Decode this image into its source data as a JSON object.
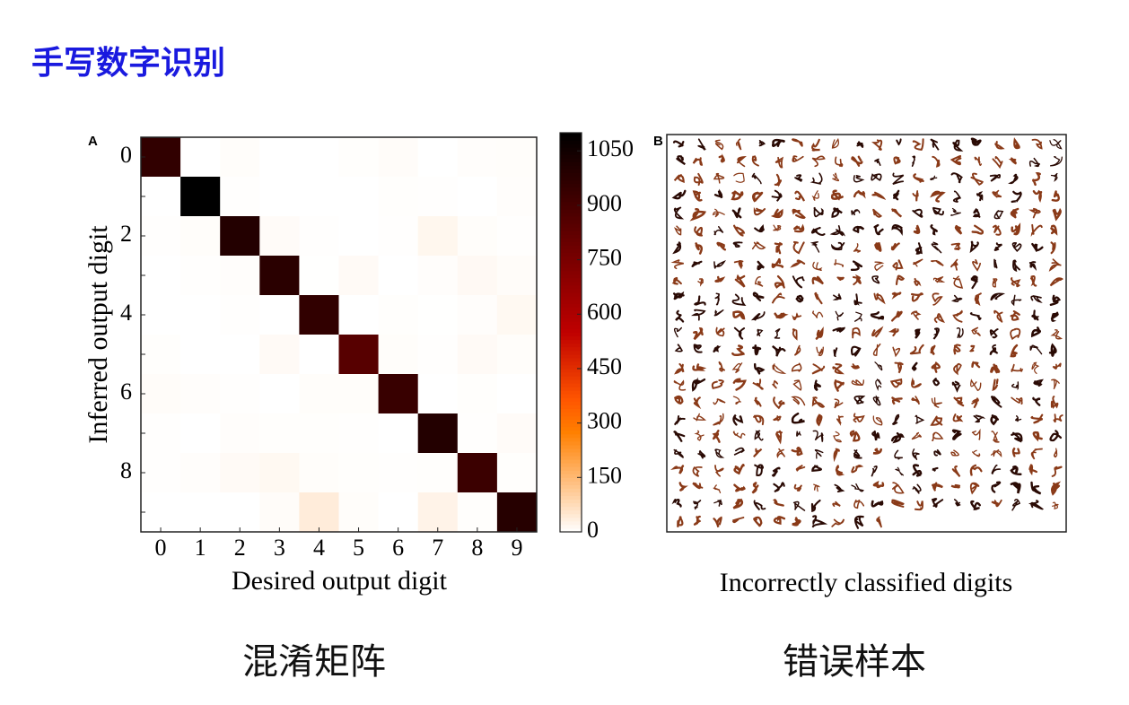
{
  "slide": {
    "title": "手写数字识别",
    "captions": [
      "混淆矩阵",
      "错误样本"
    ]
  },
  "chart_data": {
    "type": "heatmap",
    "panel_label": "A",
    "xlabel": "Desired output digit",
    "ylabel": "Inferred output digit",
    "x_categories": [
      "0",
      "1",
      "2",
      "3",
      "4",
      "5",
      "6",
      "7",
      "8",
      "9"
    ],
    "y_categories": [
      "0",
      null,
      "2",
      null,
      "4",
      null,
      "6",
      null,
      "8",
      null
    ],
    "values": [
      [
        960,
        0,
        5,
        0,
        0,
        3,
        6,
        0,
        4,
        5
      ],
      [
        0,
        1120,
        2,
        0,
        0,
        0,
        3,
        2,
        0,
        4
      ],
      [
        2,
        5,
        1000,
        8,
        2,
        0,
        2,
        18,
        5,
        2
      ],
      [
        0,
        2,
        4,
        980,
        1,
        10,
        0,
        4,
        12,
        6
      ],
      [
        0,
        0,
        2,
        0,
        960,
        0,
        3,
        1,
        4,
        14
      ],
      [
        3,
        0,
        0,
        10,
        0,
        850,
        5,
        2,
        10,
        5
      ],
      [
        6,
        4,
        2,
        0,
        5,
        5,
        940,
        0,
        3,
        0
      ],
      [
        2,
        0,
        4,
        3,
        3,
        2,
        0,
        1000,
        2,
        8
      ],
      [
        2,
        4,
        10,
        14,
        5,
        3,
        2,
        3,
        930,
        3
      ],
      [
        0,
        0,
        0,
        6,
        40,
        5,
        0,
        25,
        3,
        990
      ]
    ],
    "colormap": "gist_heat_r",
    "clim": [
      0,
      1100
    ],
    "cticks": [
      0,
      150,
      300,
      450,
      600,
      750,
      900,
      1050
    ]
  },
  "panel_b": {
    "label": "B",
    "caption": "Incorrectly classified digits"
  }
}
